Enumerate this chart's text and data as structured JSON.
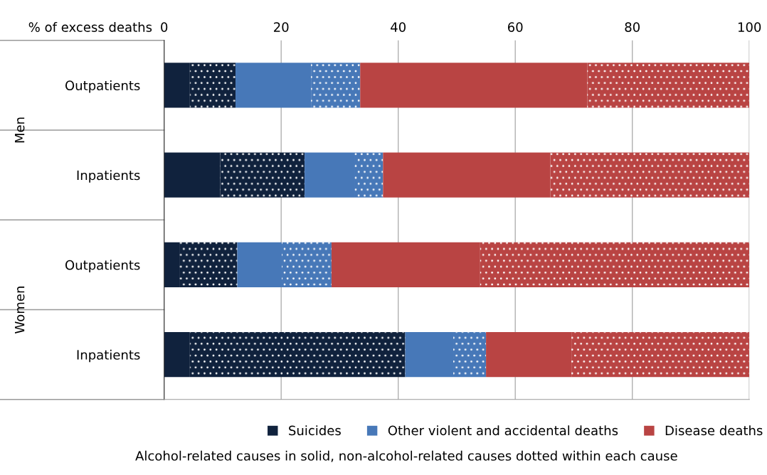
{
  "chart_data": {
    "type": "bar",
    "orientation": "horizontal",
    "stacked": true,
    "xlabel": "% of excess deaths",
    "categories": [
      "Outpatients",
      "Inpatients",
      "Outpatients",
      "Inpatients"
    ],
    "series": [
      {
        "name": "Suicides",
        "color": "#10223d",
        "values": [
          4.4,
          9.6,
          2.6,
          4.4
        ]
      },
      {
        "color": "#10223d",
        "line_style": "dotted",
        "values": [
          7.8,
          14.4,
          9.9,
          36.8
        ]
      },
      {
        "name": "Other violent and accidental deaths",
        "color": "#4778b8",
        "values": [
          12.9,
          8.5,
          7.6,
          8.2
        ]
      },
      {
        "color": "#4778b8",
        "line_style": "dotted",
        "values": [
          8.4,
          4.9,
          8.5,
          5.6
        ]
      },
      {
        "name": "Disease deaths",
        "color": "#b94443",
        "values": [
          38.8,
          28.6,
          25.4,
          14.6
        ]
      },
      {
        "color": "#b94443",
        "line_style": "dotted",
        "values": [
          27.7,
          34.0,
          46.0,
          30.4
        ]
      }
    ],
    "xlim": [
      0,
      100
    ],
    "xticks": [
      0,
      20,
      40,
      60,
      80,
      100
    ],
    "grid": "x",
    "legend": "bottom",
    "annotations": [
      "Men",
      "Women",
      "Alcohol-related causes in solid, non-alcohol-related causes dotted within each cause"
    ]
  }
}
